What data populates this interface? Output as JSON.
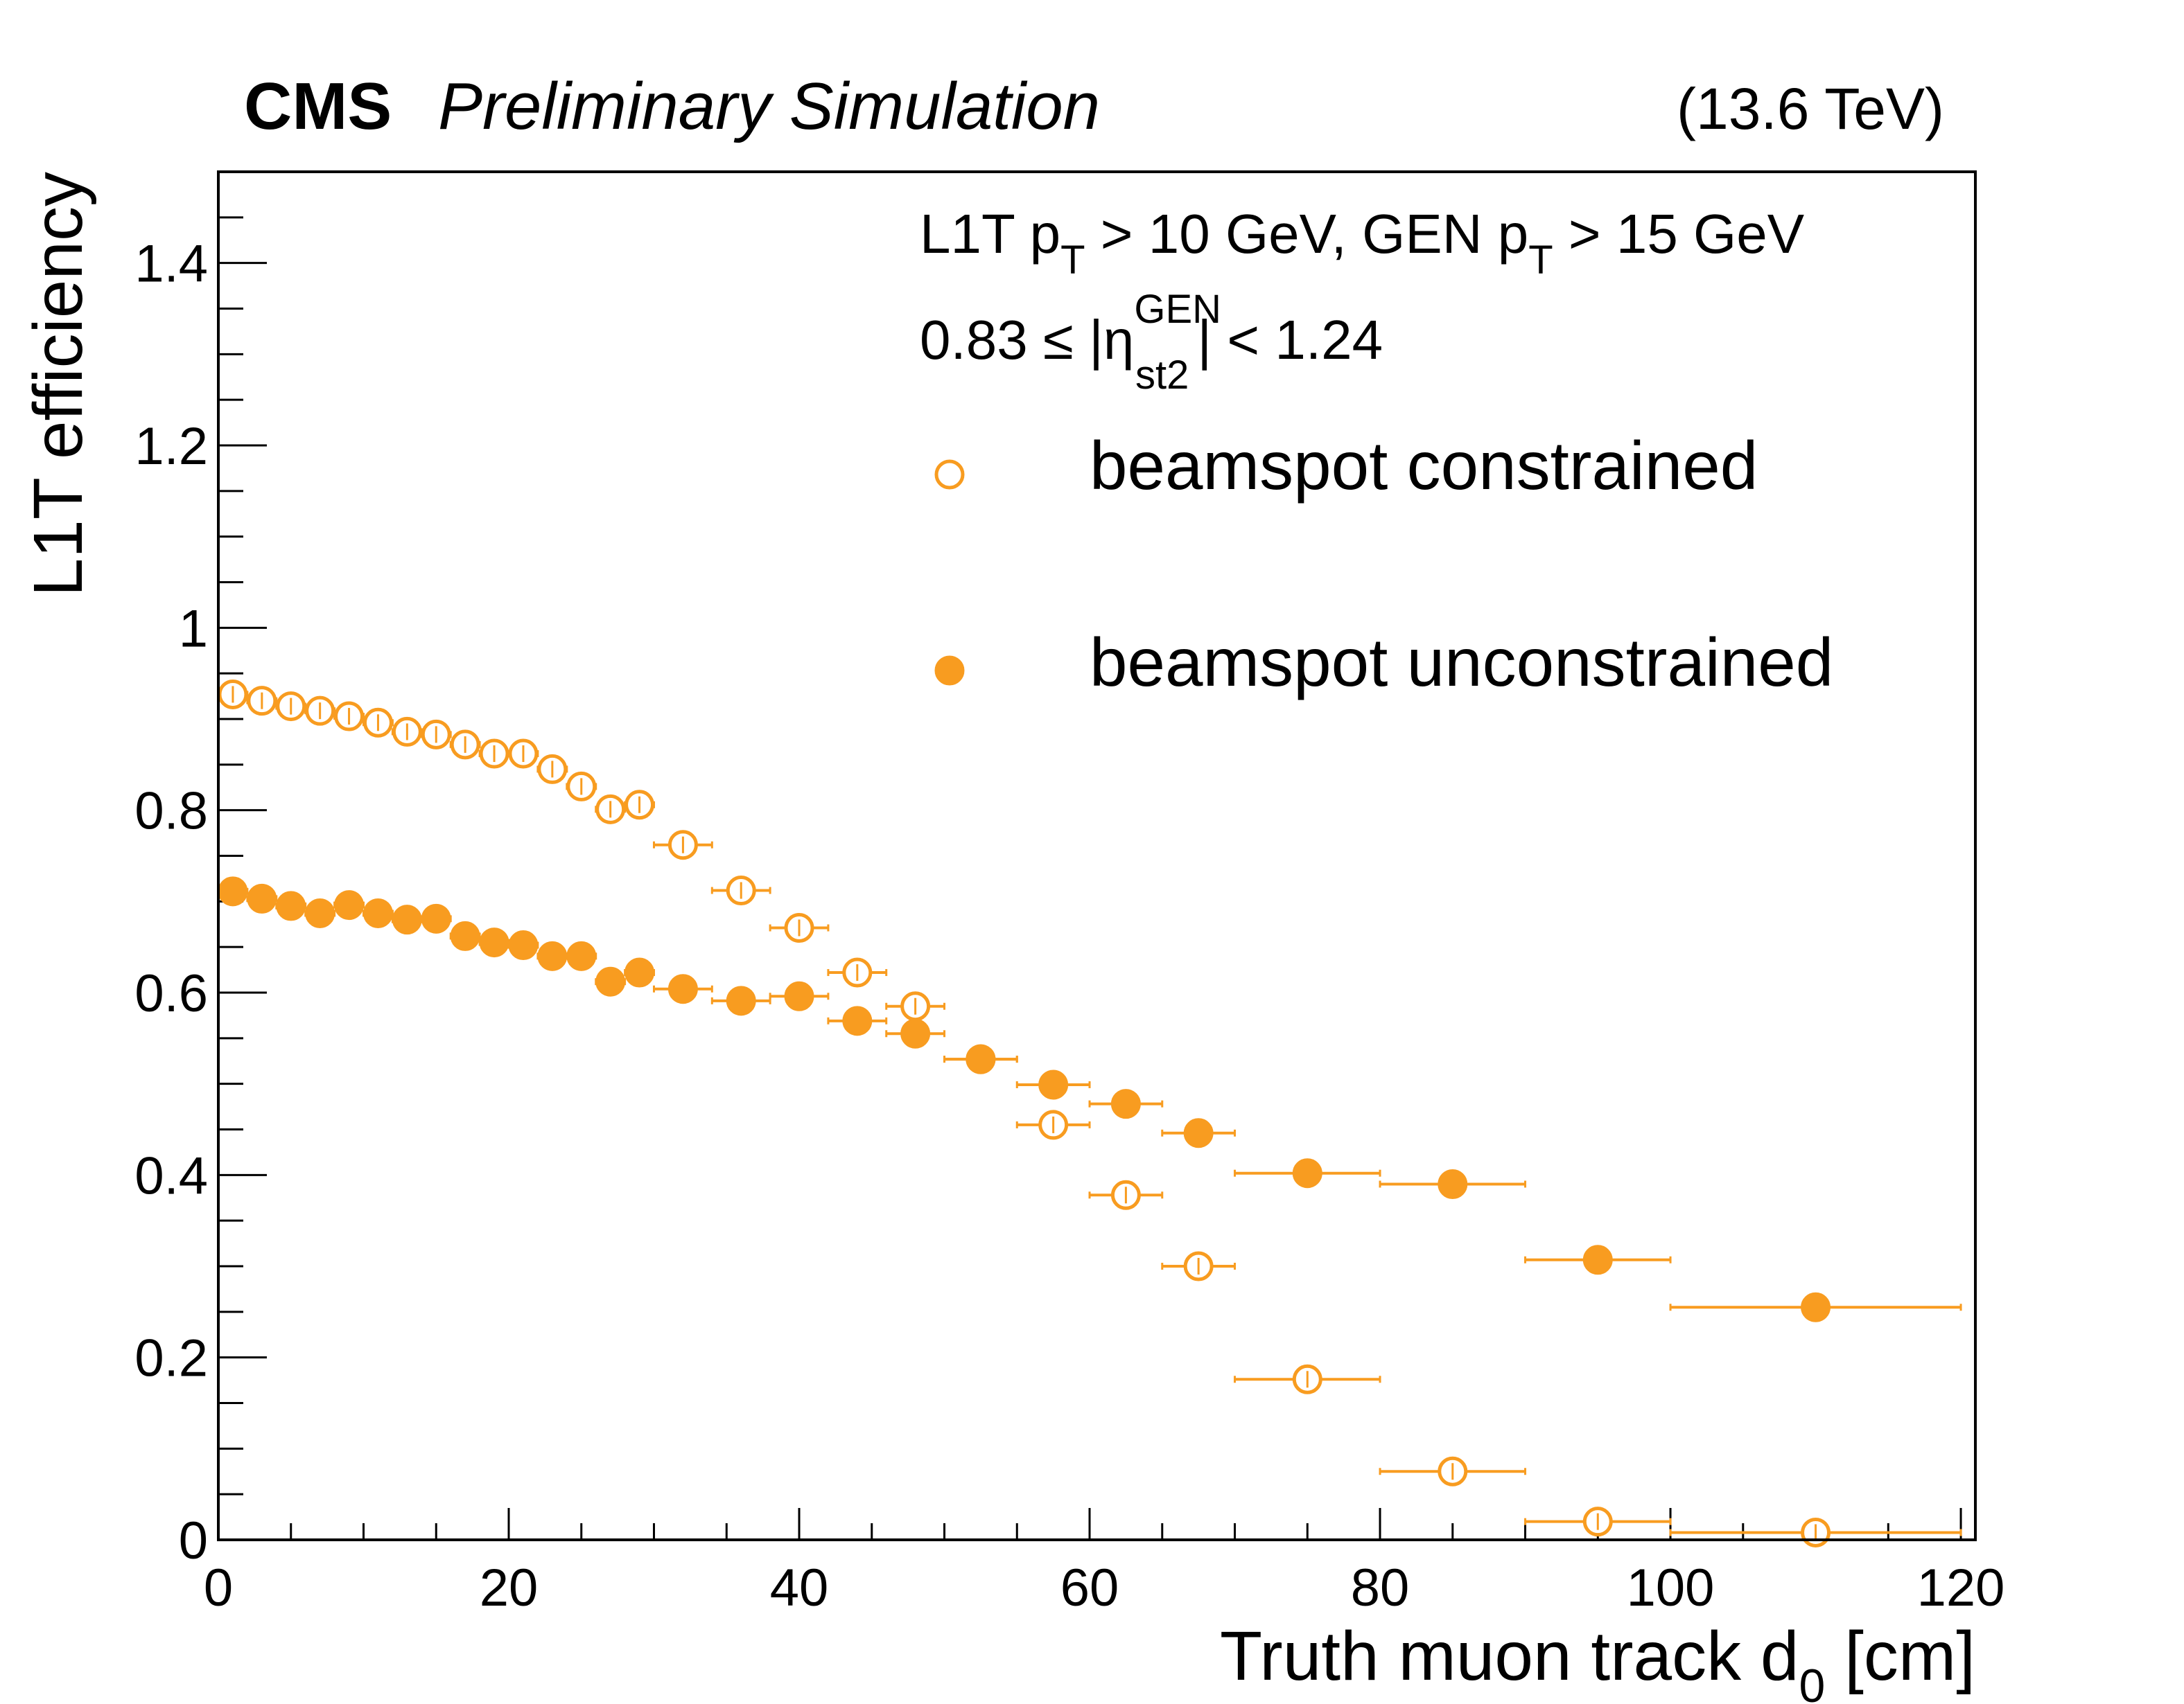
{
  "header": {
    "experiment": "CMS",
    "status": "Preliminary Simulation",
    "energy": "(13.6 TeV)"
  },
  "annotations": {
    "line1": {
      "a": "L1T p",
      "a_sub": "T",
      "b": " > 10 GeV, GEN p",
      "b_sub": "T",
      "c": " > 15 GeV"
    },
    "line2": {
      "a": "0.83 ≤ |η",
      "sup": "GEN",
      "sub": "st2",
      "b": "| < 1.24"
    }
  },
  "colors": {
    "series": "#F89C20",
    "axis": "#000000",
    "background": "#ffffff"
  },
  "chart_data": {
    "type": "scatter",
    "title": "",
    "xlabel": "Truth muon track d",
    "xlabel_sub": "0",
    "xlabel_unit": " [cm]",
    "ylabel": "L1T efficiency",
    "xlim": [
      0,
      121
    ],
    "ylim": [
      0,
      1.5
    ],
    "x_ticks": [
      0,
      20,
      40,
      60,
      80,
      100,
      120
    ],
    "x_tick_labels": [
      "0",
      "20",
      "40",
      "60",
      "80",
      "100",
      "120"
    ],
    "y_ticks": [
      0,
      0.2,
      0.4,
      0.6,
      0.8,
      1.0,
      1.2,
      1.4
    ],
    "y_tick_labels": [
      "0",
      "0.2",
      "0.4",
      "0.6",
      "0.8",
      "1",
      "1.2",
      "1.4"
    ],
    "legend": {
      "position": "top-right"
    },
    "series": [
      {
        "name": "beamspot constrained",
        "marker": "open-circle",
        "points": [
          {
            "x": 1,
            "xerr": 1,
            "y": 0.927
          },
          {
            "x": 3,
            "xerr": 1,
            "y": 0.92
          },
          {
            "x": 5,
            "xerr": 1,
            "y": 0.914
          },
          {
            "x": 7,
            "xerr": 1,
            "y": 0.909
          },
          {
            "x": 9,
            "xerr": 1,
            "y": 0.903
          },
          {
            "x": 11,
            "xerr": 1,
            "y": 0.896
          },
          {
            "x": 13,
            "xerr": 1,
            "y": 0.886
          },
          {
            "x": 15,
            "xerr": 1,
            "y": 0.883
          },
          {
            "x": 17,
            "xerr": 1,
            "y": 0.872
          },
          {
            "x": 19,
            "xerr": 1,
            "y": 0.862
          },
          {
            "x": 21,
            "xerr": 1,
            "y": 0.862
          },
          {
            "x": 23,
            "xerr": 1,
            "y": 0.845
          },
          {
            "x": 25,
            "xerr": 1,
            "y": 0.826
          },
          {
            "x": 27,
            "xerr": 1,
            "y": 0.801
          },
          {
            "x": 29,
            "xerr": 1,
            "y": 0.806
          },
          {
            "x": 32,
            "xerr": 2,
            "y": 0.762
          },
          {
            "x": 36,
            "xerr": 2,
            "y": 0.712
          },
          {
            "x": 40,
            "xerr": 2,
            "y": 0.671
          },
          {
            "x": 44,
            "xerr": 2,
            "y": 0.622
          },
          {
            "x": 48,
            "xerr": 2,
            "y": 0.585
          },
          {
            "x": 52.5,
            "xerr": 2.5,
            "y": 0.527
          },
          {
            "x": 57.5,
            "xerr": 2.5,
            "y": 0.455
          },
          {
            "x": 62.5,
            "xerr": 2.5,
            "y": 0.378
          },
          {
            "x": 67.5,
            "xerr": 2.5,
            "y": 0.3
          },
          {
            "x": 75,
            "xerr": 5,
            "y": 0.176
          },
          {
            "x": 85,
            "xerr": 5,
            "y": 0.075
          },
          {
            "x": 95,
            "xerr": 5,
            "y": 0.02
          },
          {
            "x": 110,
            "xerr": 10,
            "y": 0.008
          }
        ]
      },
      {
        "name": "beamspot unconstrained",
        "marker": "filled-circle",
        "points": [
          {
            "x": 1,
            "xerr": 1,
            "y": 0.711
          },
          {
            "x": 3,
            "xerr": 1,
            "y": 0.703
          },
          {
            "x": 5,
            "xerr": 1,
            "y": 0.695
          },
          {
            "x": 7,
            "xerr": 1,
            "y": 0.687
          },
          {
            "x": 9,
            "xerr": 1,
            "y": 0.696
          },
          {
            "x": 11,
            "xerr": 1,
            "y": 0.687
          },
          {
            "x": 13,
            "xerr": 1,
            "y": 0.68
          },
          {
            "x": 15,
            "xerr": 1,
            "y": 0.681
          },
          {
            "x": 17,
            "xerr": 1,
            "y": 0.662
          },
          {
            "x": 19,
            "xerr": 1,
            "y": 0.655
          },
          {
            "x": 21,
            "xerr": 1,
            "y": 0.652
          },
          {
            "x": 23,
            "xerr": 1,
            "y": 0.64
          },
          {
            "x": 25,
            "xerr": 1,
            "y": 0.64
          },
          {
            "x": 27,
            "xerr": 1,
            "y": 0.612
          },
          {
            "x": 29,
            "xerr": 1,
            "y": 0.622
          },
          {
            "x": 32,
            "xerr": 2,
            "y": 0.604
          },
          {
            "x": 36,
            "xerr": 2,
            "y": 0.591
          },
          {
            "x": 40,
            "xerr": 2,
            "y": 0.596
          },
          {
            "x": 44,
            "xerr": 2,
            "y": 0.569
          },
          {
            "x": 48,
            "xerr": 2,
            "y": 0.555
          },
          {
            "x": 52.5,
            "xerr": 2.5,
            "y": 0.527
          },
          {
            "x": 57.5,
            "xerr": 2.5,
            "y": 0.499
          },
          {
            "x": 62.5,
            "xerr": 2.5,
            "y": 0.478
          },
          {
            "x": 67.5,
            "xerr": 2.5,
            "y": 0.446
          },
          {
            "x": 75,
            "xerr": 5,
            "y": 0.402
          },
          {
            "x": 85,
            "xerr": 5,
            "y": 0.39
          },
          {
            "x": 95,
            "xerr": 5,
            "y": 0.307
          },
          {
            "x": 110,
            "xerr": 10,
            "y": 0.255
          }
        ]
      }
    ]
  }
}
